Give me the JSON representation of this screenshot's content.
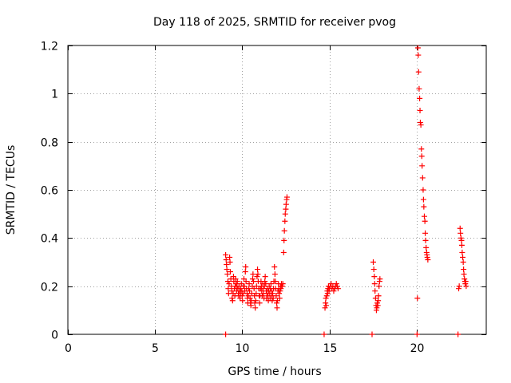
{
  "chart_data": {
    "type": "scatter",
    "title": "Day 118 of 2025, SRMTID for receiver pvog",
    "xlabel": "GPS time / hours",
    "ylabel": "SRMTID / TECUs",
    "xlim": [
      0,
      24
    ],
    "ylim": [
      0,
      1.2
    ],
    "x_ticks": [
      0,
      5,
      10,
      15,
      20
    ],
    "y_ticks": [
      0,
      0.2,
      0.4,
      0.6,
      0.8,
      1,
      1.2
    ],
    "x_tick_labels": [
      "0",
      "5",
      "10",
      "15",
      "20"
    ],
    "y_tick_labels": [
      "0",
      "0.2",
      "0.4",
      "0.6",
      "0.8",
      "1",
      "1.2"
    ],
    "grid": true,
    "marker": "plus",
    "color": "#ff0000",
    "series": [
      {
        "points": [
          [
            9.05,
            0.33
          ],
          [
            9.08,
            0.31
          ],
          [
            9.1,
            0.29
          ],
          [
            9.12,
            0.27
          ],
          [
            9.15,
            0.25
          ],
          [
            9.18,
            0.22
          ],
          [
            9.2,
            0.19
          ],
          [
            9.22,
            0.17
          ],
          [
            9.25,
            0.21
          ],
          [
            9.28,
            0.32
          ],
          [
            9.3,
            0.3
          ],
          [
            9.32,
            0.26
          ],
          [
            9.35,
            0.23
          ],
          [
            9.38,
            0.2
          ],
          [
            9.4,
            0.18
          ],
          [
            9.42,
            0.15
          ],
          [
            9.45,
            0.14
          ],
          [
            9.48,
            0.17
          ],
          [
            9.5,
            0.24
          ],
          [
            9.52,
            0.22
          ],
          [
            9.55,
            0.19
          ],
          [
            9.58,
            0.16
          ],
          [
            9.6,
            0.2
          ],
          [
            9.62,
            0.23
          ],
          [
            9.65,
            0.21
          ],
          [
            9.68,
            0.18
          ],
          [
            9.7,
            0.2
          ],
          [
            9.72,
            0.22
          ],
          [
            9.75,
            0.19
          ],
          [
            9.78,
            0.17
          ],
          [
            9.8,
            0.16
          ],
          [
            9.82,
            0.2
          ],
          [
            9.85,
            0.18
          ],
          [
            9.88,
            0.15
          ],
          [
            9.9,
            0.17
          ],
          [
            9.92,
            0.19
          ],
          [
            9.95,
            0.21
          ],
          [
            9.98,
            0.18
          ],
          [
            10.0,
            0.16
          ],
          [
            10.02,
            0.14
          ],
          [
            10.05,
            0.17
          ],
          [
            10.08,
            0.2
          ],
          [
            10.1,
            0.23
          ],
          [
            10.12,
            0.2
          ],
          [
            10.15,
            0.18
          ],
          [
            10.18,
            0.26
          ],
          [
            10.2,
            0.28
          ],
          [
            10.22,
            0.22
          ],
          [
            10.25,
            0.19
          ],
          [
            10.28,
            0.17
          ],
          [
            10.3,
            0.15
          ],
          [
            10.32,
            0.13
          ],
          [
            10.35,
            0.16
          ],
          [
            10.38,
            0.19
          ],
          [
            10.4,
            0.21
          ],
          [
            10.42,
            0.18
          ],
          [
            10.45,
            0.15
          ],
          [
            10.48,
            0.13
          ],
          [
            10.5,
            0.12
          ],
          [
            10.52,
            0.14
          ],
          [
            10.55,
            0.17
          ],
          [
            10.58,
            0.2
          ],
          [
            10.6,
            0.23
          ],
          [
            10.62,
            0.25
          ],
          [
            10.65,
            0.22
          ],
          [
            10.68,
            0.19
          ],
          [
            10.7,
            0.16
          ],
          [
            10.72,
            0.13
          ],
          [
            10.75,
            0.11
          ],
          [
            10.78,
            0.14
          ],
          [
            10.8,
            0.17
          ],
          [
            10.82,
            0.2
          ],
          [
            10.85,
            0.24
          ],
          [
            10.88,
            0.27
          ],
          [
            10.9,
            0.25
          ],
          [
            10.92,
            0.22
          ],
          [
            10.95,
            0.19
          ],
          [
            10.98,
            0.16
          ],
          [
            11.0,
            0.13
          ],
          [
            11.02,
            0.16
          ],
          [
            11.05,
            0.19
          ],
          [
            11.08,
            0.22
          ],
          [
            11.1,
            0.2
          ],
          [
            11.12,
            0.18
          ],
          [
            11.15,
            0.16
          ],
          [
            11.18,
            0.21
          ],
          [
            11.2,
            0.19
          ],
          [
            11.22,
            0.17
          ],
          [
            11.25,
            0.15
          ],
          [
            11.28,
            0.2
          ],
          [
            11.3,
            0.22
          ],
          [
            11.32,
            0.24
          ],
          [
            11.35,
            0.21
          ],
          [
            11.38,
            0.18
          ],
          [
            11.4,
            0.15
          ],
          [
            11.42,
            0.17
          ],
          [
            11.45,
            0.19
          ],
          [
            11.48,
            0.16
          ],
          [
            11.5,
            0.14
          ],
          [
            11.52,
            0.18
          ],
          [
            11.55,
            0.2
          ],
          [
            11.58,
            0.17
          ],
          [
            11.6,
            0.15
          ],
          [
            11.62,
            0.19
          ],
          [
            11.65,
            0.21
          ],
          [
            11.68,
            0.18
          ],
          [
            11.7,
            0.16
          ],
          [
            11.72,
            0.14
          ],
          [
            11.75,
            0.17
          ],
          [
            11.78,
            0.15
          ],
          [
            11.8,
            0.19
          ],
          [
            11.82,
            0.22
          ],
          [
            11.85,
            0.28
          ],
          [
            11.88,
            0.25
          ],
          [
            11.9,
            0.22
          ],
          [
            11.92,
            0.19
          ],
          [
            11.95,
            0.16
          ],
          [
            11.98,
            0.13
          ],
          [
            12.0,
            0.11
          ],
          [
            12.02,
            0.14
          ],
          [
            12.05,
            0.18
          ],
          [
            12.08,
            0.21
          ],
          [
            12.1,
            0.19
          ],
          [
            12.12,
            0.17
          ],
          [
            12.15,
            0.15
          ],
          [
            12.18,
            0.18
          ],
          [
            12.2,
            0.2
          ],
          [
            12.22,
            0.19
          ],
          [
            12.25,
            0.21
          ],
          [
            12.28,
            0.2
          ],
          [
            12.3,
            0.2
          ],
          [
            12.33,
            0.21
          ],
          [
            12.38,
            0.34
          ],
          [
            12.4,
            0.39
          ],
          [
            12.42,
            0.43
          ],
          [
            12.45,
            0.47
          ],
          [
            12.47,
            0.5
          ],
          [
            12.5,
            0.52
          ],
          [
            12.52,
            0.54
          ],
          [
            12.55,
            0.56
          ],
          [
            12.57,
            0.57
          ],
          [
            14.75,
            0.11
          ],
          [
            14.78,
            0.13
          ],
          [
            14.8,
            0.15
          ],
          [
            14.82,
            0.12
          ],
          [
            14.85,
            0.16
          ],
          [
            14.88,
            0.18
          ],
          [
            14.9,
            0.17
          ],
          [
            14.92,
            0.19
          ],
          [
            14.95,
            0.2
          ],
          [
            14.98,
            0.18
          ],
          [
            15.0,
            0.19
          ],
          [
            15.05,
            0.2
          ],
          [
            15.1,
            0.21
          ],
          [
            15.15,
            0.19
          ],
          [
            15.2,
            0.2
          ],
          [
            15.25,
            0.18
          ],
          [
            15.3,
            0.19
          ],
          [
            15.35,
            0.2
          ],
          [
            15.4,
            0.21
          ],
          [
            15.45,
            0.2
          ],
          [
            15.5,
            0.19
          ],
          [
            17.52,
            0.3
          ],
          [
            17.55,
            0.27
          ],
          [
            17.58,
            0.24
          ],
          [
            17.6,
            0.21
          ],
          [
            17.62,
            0.18
          ],
          [
            17.65,
            0.15
          ],
          [
            17.68,
            0.12
          ],
          [
            17.7,
            0.1
          ],
          [
            17.72,
            0.11
          ],
          [
            17.75,
            0.13
          ],
          [
            17.78,
            0.12
          ],
          [
            17.8,
            0.14
          ],
          [
            17.82,
            0.16
          ],
          [
            17.85,
            0.2
          ],
          [
            17.88,
            0.22
          ],
          [
            17.9,
            0.23
          ],
          [
            20.05,
            0.15
          ],
          [
            20.08,
            1.19
          ],
          [
            20.1,
            1.16
          ],
          [
            20.12,
            1.09
          ],
          [
            20.15,
            1.02
          ],
          [
            20.18,
            0.98
          ],
          [
            20.2,
            0.93
          ],
          [
            20.22,
            0.88
          ],
          [
            20.25,
            0.87
          ],
          [
            20.28,
            0.77
          ],
          [
            20.3,
            0.74
          ],
          [
            20.32,
            0.7
          ],
          [
            20.35,
            0.65
          ],
          [
            20.38,
            0.6
          ],
          [
            20.4,
            0.56
          ],
          [
            20.42,
            0.53
          ],
          [
            20.45,
            0.49
          ],
          [
            20.48,
            0.47
          ],
          [
            20.5,
            0.42
          ],
          [
            20.52,
            0.39
          ],
          [
            20.55,
            0.36
          ],
          [
            20.58,
            0.34
          ],
          [
            20.6,
            0.33
          ],
          [
            20.62,
            0.32
          ],
          [
            20.65,
            0.31
          ],
          [
            22.42,
            0.19
          ],
          [
            22.45,
            0.2
          ],
          [
            22.5,
            0.44
          ],
          [
            22.52,
            0.42
          ],
          [
            22.55,
            0.4
          ],
          [
            22.58,
            0.39
          ],
          [
            22.6,
            0.37
          ],
          [
            22.62,
            0.34
          ],
          [
            22.65,
            0.32
          ],
          [
            22.68,
            0.3
          ],
          [
            22.7,
            0.27
          ],
          [
            22.72,
            0.25
          ],
          [
            22.75,
            0.23
          ],
          [
            22.78,
            0.22
          ],
          [
            22.8,
            0.21
          ],
          [
            22.82,
            0.22
          ],
          [
            22.85,
            0.2
          ]
        ]
      },
      {
        "points": [
          [
            9.05,
            0
          ],
          [
            14.7,
            0
          ],
          [
            17.45,
            0
          ],
          [
            20.03,
            0
          ],
          [
            22.38,
            0
          ]
        ]
      }
    ]
  }
}
